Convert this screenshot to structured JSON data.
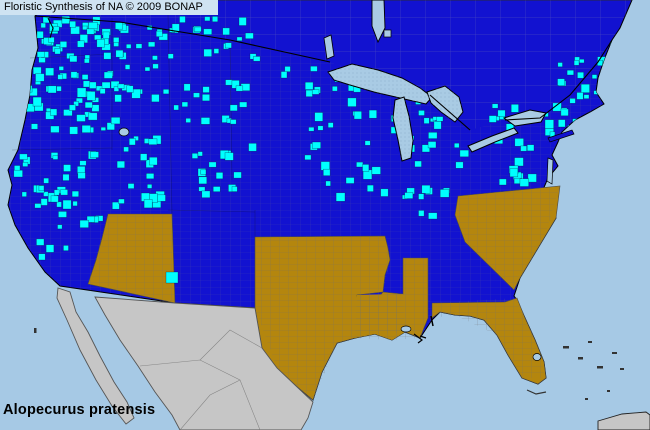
{
  "header": {
    "title": "Floristic Synthesis of NA © 2009 BONAP"
  },
  "footer": {
    "species_label": "Alopecurus pratensis"
  },
  "map": {
    "kind": "county-level species distribution map of North America",
    "colors": {
      "ocean": "#A6C9E5",
      "statePresent": "#1212D0",
      "countyPresent": "#00FFFF",
      "stateAbsent": "#B4860E",
      "outside": "#C6C6C6",
      "lake": "#A9CBE4",
      "coast": "#000000",
      "countyLineBlue": "#4E4EA0",
      "countyLineGold": "#6E6E6E",
      "canadaLine": "#7E7EB2",
      "titleBg": "#CFE3F2",
      "text": "#000000"
    }
  }
}
